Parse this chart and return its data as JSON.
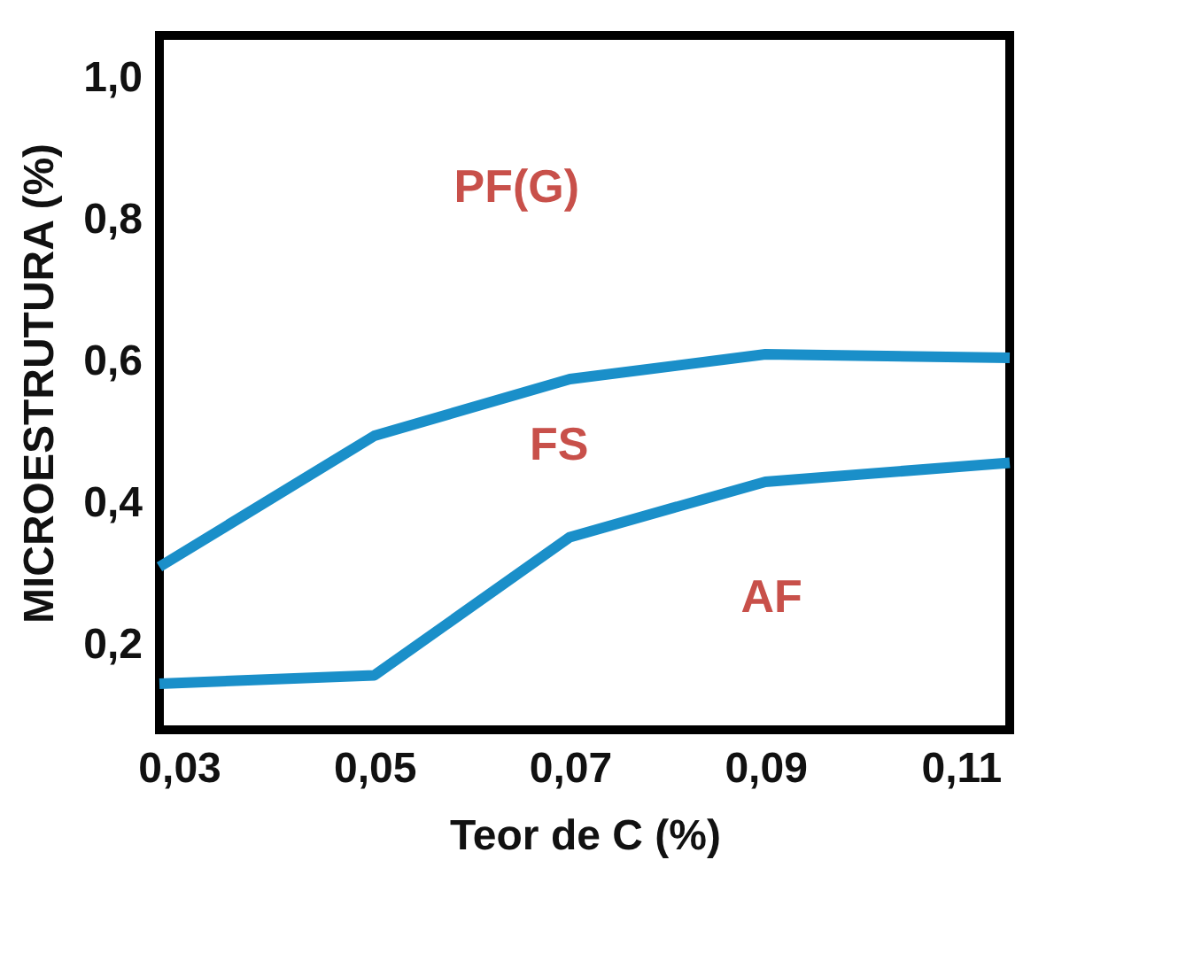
{
  "chart_data": {
    "type": "line",
    "xlabel": "Teor de C (%)",
    "ylabel": "MICROESTRUTURA (%)",
    "xlim": [
      0.028,
      0.115
    ],
    "ylim": [
      0.08,
      1.06
    ],
    "xticks": [
      {
        "value": 0.03,
        "label": "0,03"
      },
      {
        "value": 0.05,
        "label": "0,05"
      },
      {
        "value": 0.07,
        "label": "0,07"
      },
      {
        "value": 0.09,
        "label": "0,09"
      },
      {
        "value": 0.11,
        "label": "0,11"
      }
    ],
    "yticks": [
      {
        "value": 0.2,
        "label": "0,2"
      },
      {
        "value": 0.4,
        "label": "0,4"
      },
      {
        "value": 0.6,
        "label": "0,6"
      },
      {
        "value": 0.8,
        "label": "0,8"
      },
      {
        "value": 1.0,
        "label": "1,0"
      }
    ],
    "x": [
      0.028,
      0.05,
      0.07,
      0.09,
      0.115
    ],
    "series": [
      {
        "color": "#1a8fc9",
        "values": [
          0.31,
          0.495,
          0.575,
          0.61,
          0.605
        ]
      },
      {
        "color": "#1a8fc9",
        "values": [
          0.145,
          0.157,
          0.352,
          0.43,
          0.457
        ]
      }
    ],
    "annotations": [
      "PF(G)",
      "FS",
      "AF"
    ],
    "grid": false,
    "marker": "none",
    "line_style": "solid"
  }
}
